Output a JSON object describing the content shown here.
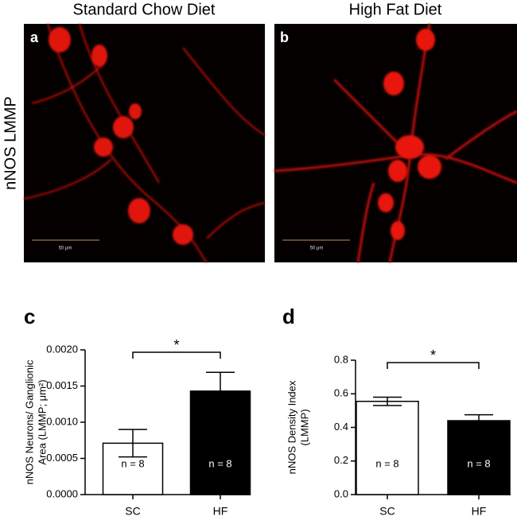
{
  "panels": {
    "col_titles": [
      "Standard Chow Diet",
      "High Fat Diet"
    ],
    "row_label": "nNOS LMMP",
    "image_labels": [
      "a",
      "b"
    ],
    "scale_bars": [
      "50 μm",
      "50 μm"
    ]
  },
  "chart_data": [
    {
      "type": "bar",
      "panel": "c",
      "ylabel": [
        "nNOS Neurons/ Ganglionic",
        "Area (LMMP; μm²)"
      ],
      "categories": [
        "SC",
        "HF"
      ],
      "values": [
        0.00071,
        0.00143
      ],
      "errors": [
        0.00019,
        0.00026
      ],
      "colors": [
        "#ffffff",
        "#000000"
      ],
      "annotations": [
        "n = 8",
        "n = 8"
      ],
      "significance": "*",
      "ylim": [
        0,
        0.002
      ],
      "yticks": [
        {
          "value": 0,
          "label": "0.0000"
        },
        {
          "value": 0.0005,
          "label": "0.0005"
        },
        {
          "value": 0.001,
          "label": "0.0010"
        },
        {
          "value": 0.0015,
          "label": "0.0015"
        },
        {
          "value": 0.002,
          "label": "0.0020"
        }
      ]
    },
    {
      "type": "bar",
      "panel": "d",
      "ylabel": [
        "nNOS Density Index",
        "(LMMP)"
      ],
      "categories": [
        "SC",
        "HF"
      ],
      "values": [
        0.555,
        0.44
      ],
      "errors": [
        0.025,
        0.035
      ],
      "colors": [
        "#ffffff",
        "#000000"
      ],
      "annotations": [
        "n = 8",
        "n = 8"
      ],
      "significance": "*",
      "ylim": [
        0,
        0.8
      ],
      "yticks": [
        {
          "value": 0,
          "label": "0.0"
        },
        0.2,
        0.4,
        0.6,
        0.8
      ]
    }
  ]
}
